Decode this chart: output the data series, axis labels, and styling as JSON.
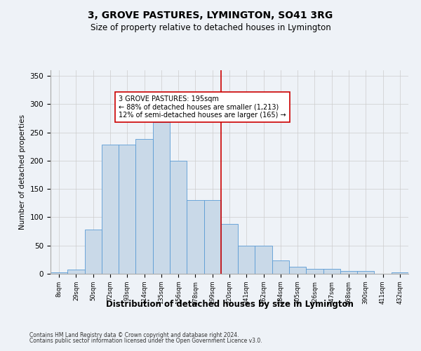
{
  "title1": "3, GROVE PASTURES, LYMINGTON, SO41 3RG",
  "title2": "Size of property relative to detached houses in Lymington",
  "xlabel": "Distribution of detached houses by size in Lymington",
  "ylabel": "Number of detached properties",
  "categories": [
    "8sqm",
    "29sqm",
    "50sqm",
    "72sqm",
    "93sqm",
    "114sqm",
    "135sqm",
    "156sqm",
    "178sqm",
    "199sqm",
    "220sqm",
    "241sqm",
    "262sqm",
    "284sqm",
    "305sqm",
    "326sqm",
    "347sqm",
    "368sqm",
    "390sqm",
    "411sqm",
    "432sqm"
  ],
  "values": [
    2,
    7,
    78,
    228,
    228,
    238,
    268,
    200,
    130,
    130,
    88,
    50,
    50,
    23,
    12,
    9,
    9,
    5,
    5,
    0,
    3
  ],
  "bar_color": "#c9d9e8",
  "bar_edge_color": "#5b9bd5",
  "vline_x_idx": 9,
  "vline_color": "#cc0000",
  "annotation_text": "3 GROVE PASTURES: 195sqm\n← 88% of detached houses are smaller (1,213)\n12% of semi-detached houses are larger (165) →",
  "annotation_box_color": "#ffffff",
  "annotation_box_edge": "#cc0000",
  "footer1": "Contains HM Land Registry data © Crown copyright and database right 2024.",
  "footer2": "Contains public sector information licensed under the Open Government Licence v3.0.",
  "bg_color": "#eef2f7",
  "ylim": [
    0,
    360
  ],
  "yticks": [
    0,
    50,
    100,
    150,
    200,
    250,
    300,
    350
  ]
}
